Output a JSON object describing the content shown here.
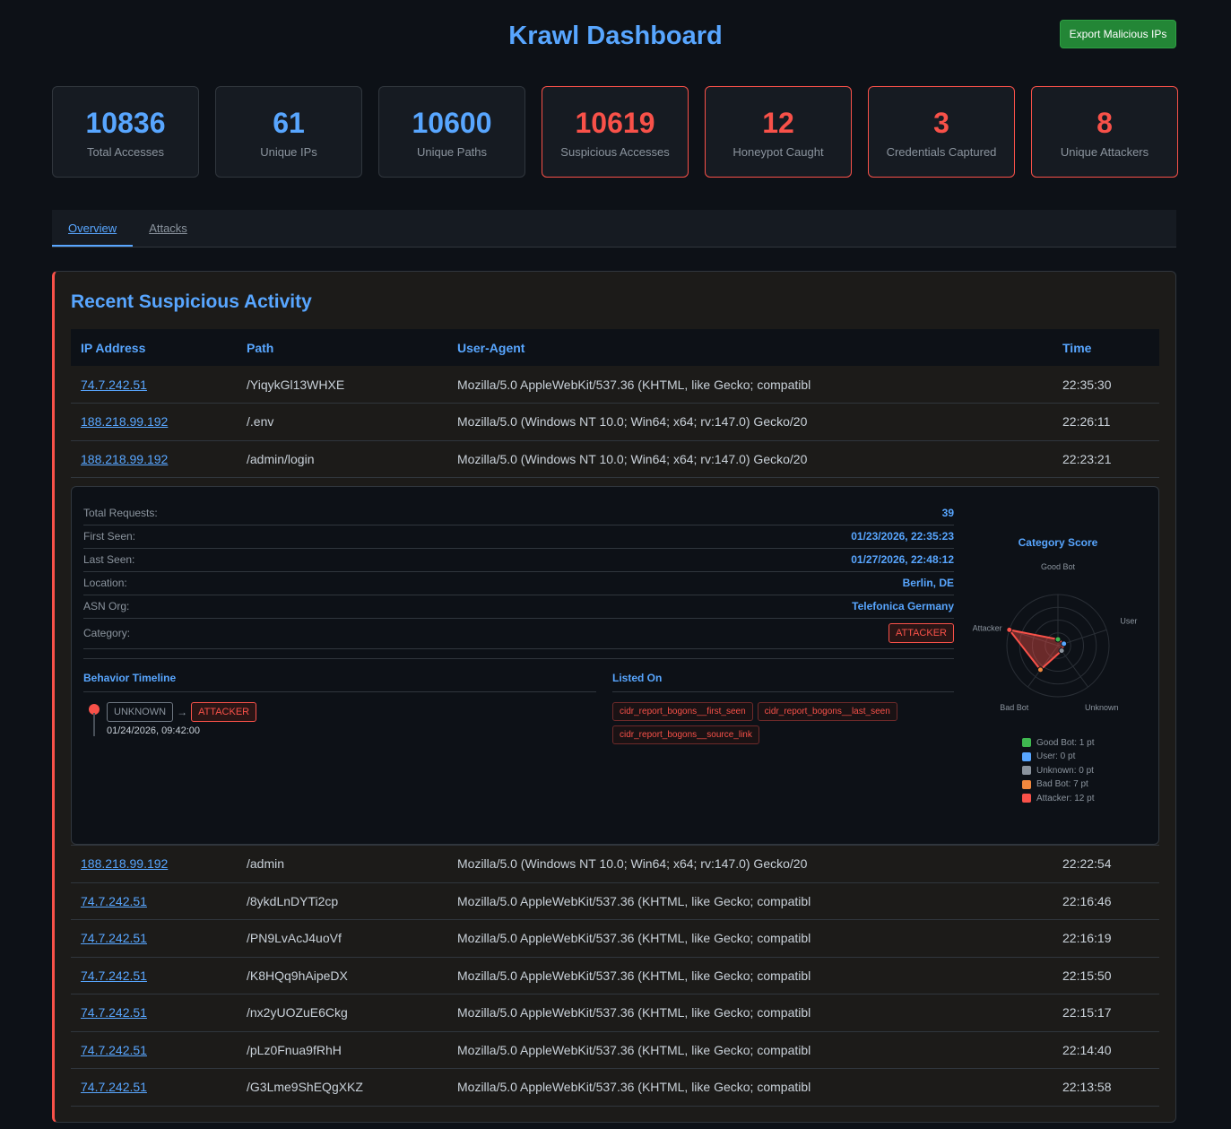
{
  "header": {
    "title": "Krawl Dashboard",
    "export_label": "Export Malicious IPs"
  },
  "stats": [
    {
      "value": "10836",
      "label": "Total Accesses",
      "alert": false
    },
    {
      "value": "61",
      "label": "Unique IPs",
      "alert": false
    },
    {
      "value": "10600",
      "label": "Unique Paths",
      "alert": false
    },
    {
      "value": "10619",
      "label": "Suspicious Accesses",
      "alert": true
    },
    {
      "value": "12",
      "label": "Honeypot Caught",
      "alert": true
    },
    {
      "value": "3",
      "label": "Credentials Captured",
      "alert": true
    },
    {
      "value": "8",
      "label": "Unique Attackers",
      "alert": true
    }
  ],
  "tabs": [
    {
      "label": "Overview",
      "active": true
    },
    {
      "label": "Attacks",
      "active": false
    }
  ],
  "section": {
    "title": "Recent Suspicious Activity",
    "columns": [
      "IP Address",
      "Path",
      "User-Agent",
      "Time"
    ],
    "rows_before": [
      [
        "74.7.242.51",
        "/YiqykGl13WHXE",
        "Mozilla/5.0 AppleWebKit/537.36 (KHTML, like Gecko; compatibl",
        "22:35:30"
      ],
      [
        "188.218.99.192",
        "/.env",
        "Mozilla/5.0 (Windows NT 10.0; Win64; x64; rv:147.0) Gecko/20",
        "22:26:11"
      ],
      [
        "188.218.99.192",
        "/admin/login",
        "Mozilla/5.0 (Windows NT 10.0; Win64; x64; rv:147.0) Gecko/20",
        "22:23:21"
      ]
    ],
    "rows_after": [
      [
        "188.218.99.192",
        "/admin",
        "Mozilla/5.0 (Windows NT 10.0; Win64; x64; rv:147.0) Gecko/20",
        "22:22:54"
      ],
      [
        "74.7.242.51",
        "/8ykdLnDYTi2cp",
        "Mozilla/5.0 AppleWebKit/537.36 (KHTML, like Gecko; compatibl",
        "22:16:46"
      ],
      [
        "74.7.242.51",
        "/PN9LvAcJ4uoVf",
        "Mozilla/5.0 AppleWebKit/537.36 (KHTML, like Gecko; compatibl",
        "22:16:19"
      ],
      [
        "74.7.242.51",
        "/K8HQq9hAipeDX",
        "Mozilla/5.0 AppleWebKit/537.36 (KHTML, like Gecko; compatibl",
        "22:15:50"
      ],
      [
        "74.7.242.51",
        "/nx2yUOZuE6Ckg",
        "Mozilla/5.0 AppleWebKit/537.36 (KHTML, like Gecko; compatibl",
        "22:15:17"
      ],
      [
        "74.7.242.51",
        "/pLz0Fnua9fRhH",
        "Mozilla/5.0 AppleWebKit/537.36 (KHTML, like Gecko; compatibl",
        "22:14:40"
      ],
      [
        "74.7.242.51",
        "/G3Lme9ShEQgXKZ",
        "Mozilla/5.0 AppleWebKit/537.36 (KHTML, like Gecko; compatibl",
        "22:13:58"
      ]
    ]
  },
  "detail": {
    "fields": [
      {
        "label": "Total Requests:",
        "value": "39"
      },
      {
        "label": "First Seen:",
        "value": "01/23/2026, 22:35:23"
      },
      {
        "label": "Last Seen:",
        "value": "01/27/2026, 22:48:12"
      },
      {
        "label": "Location:",
        "value": "Berlin, DE"
      },
      {
        "label": "ASN Org:",
        "value": "Telefonica Germany"
      }
    ],
    "category_label": "Category:",
    "category": "ATTACKER",
    "timeline_title": "Behavior Timeline",
    "timeline": {
      "from": "UNKNOWN",
      "arrow": "→",
      "to": "ATTACKER",
      "timestamp": "01/24/2026, 09:42:00"
    },
    "listed_title": "Listed On",
    "listed": [
      "cidr_report_bogons__first_seen",
      "cidr_report_bogons__last_seen",
      "cidr_report_bogons__source_link"
    ]
  },
  "chart_data": {
    "type": "radar",
    "title": "Category Score",
    "categories": [
      "Good Bot",
      "User",
      "Unknown",
      "Bad Bot",
      "Attacker"
    ],
    "values": [
      1,
      0,
      0,
      7,
      12
    ],
    "colors": [
      "#3fb950",
      "#58a6ff",
      "#8b949e",
      "#f0883e",
      "#f85149"
    ],
    "legend": [
      "Good Bot: 1 pt",
      "User: 0 pt",
      "Unknown: 0 pt",
      "Bad Bot: 7 pt",
      "Attacker: 12 pt"
    ],
    "legend_placement": "bottom"
  }
}
